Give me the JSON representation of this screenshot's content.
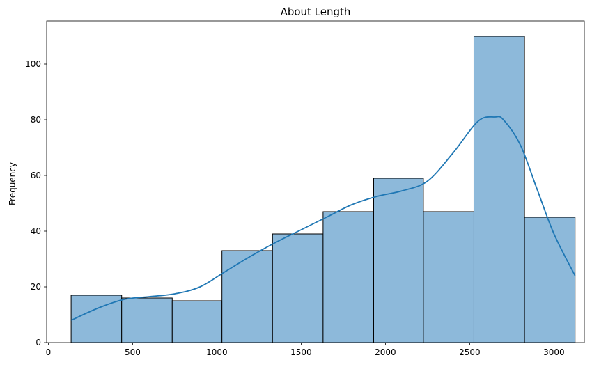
{
  "chart_data": {
    "type": "bar",
    "title": "About Length",
    "xlabel": "",
    "ylabel": "Frequency",
    "xlim": [
      -10,
      3180
    ],
    "ylim": [
      0,
      115.5
    ],
    "x_ticks": [
      0,
      500,
      1000,
      1500,
      2000,
      2500,
      3000
    ],
    "y_ticks": [
      0,
      20,
      40,
      60,
      80,
      100
    ],
    "grid": false,
    "bins": [
      {
        "start": 135,
        "end": 435,
        "count": 17
      },
      {
        "start": 435,
        "end": 735,
        "count": 16
      },
      {
        "start": 735,
        "end": 1030,
        "count": 15
      },
      {
        "start": 1030,
        "end": 1330,
        "count": 33
      },
      {
        "start": 1330,
        "end": 1630,
        "count": 39
      },
      {
        "start": 1630,
        "end": 1930,
        "count": 47
      },
      {
        "start": 1930,
        "end": 2225,
        "count": 59
      },
      {
        "start": 2225,
        "end": 2525,
        "count": 47
      },
      {
        "start": 2525,
        "end": 2825,
        "count": 110
      },
      {
        "start": 2825,
        "end": 3125,
        "count": 45
      }
    ],
    "kde": {
      "x": [
        135,
        300,
        450,
        600,
        750,
        900,
        1050,
        1200,
        1350,
        1500,
        1650,
        1800,
        1950,
        2100,
        2250,
        2400,
        2550,
        2650,
        2700,
        2800,
        2900,
        3000,
        3125
      ],
      "y": [
        8,
        12.5,
        15.5,
        16.5,
        17.5,
        20,
        25.5,
        31,
        36,
        40.5,
        45,
        49.5,
        52.5,
        54.5,
        58,
        68,
        79.5,
        81,
        80,
        71,
        55,
        39,
        24
      ]
    },
    "colors": {
      "bar_fill": "#8db9da",
      "bar_edge": "#000000",
      "kde_line": "#1f77b4"
    }
  }
}
